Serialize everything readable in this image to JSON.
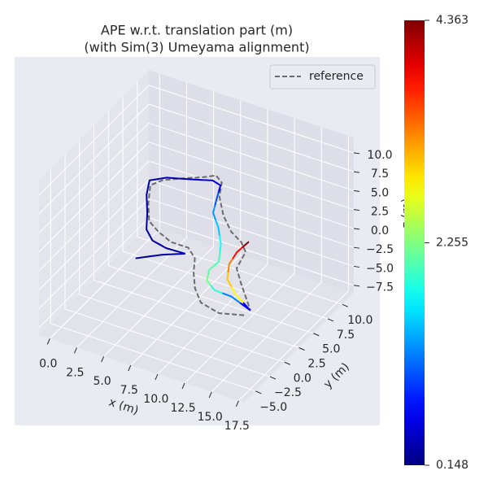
{
  "chart_data": {
    "type": "trajectory3d",
    "title": "APE w.r.t. translation part (m)",
    "subtitle": "(with Sim(3) Umeyama alignment)",
    "xlabel": "x (m)",
    "ylabel": "y (m)",
    "zlabel": "z (m)",
    "xlim": [
      -1,
      18
    ],
    "ylim": [
      -7,
      12
    ],
    "zlim": [
      -8.5,
      12
    ],
    "xticks": [
      {
        "value": 0,
        "label": "0.0"
      },
      2.5,
      {
        "value": 5,
        "label": "5.0"
      },
      7.5,
      {
        "value": 10,
        "label": "10.0"
      },
      12.5,
      {
        "value": 15,
        "label": "15.0"
      },
      17.5
    ],
    "yticks": [
      {
        "value": -5,
        "label": "−5.0"
      },
      {
        "value": -2.5,
        "label": "−2.5"
      },
      {
        "value": 0,
        "label": "0.0"
      },
      2.5,
      {
        "value": 5,
        "label": "5.0"
      },
      7.5,
      {
        "value": 10,
        "label": "10.0"
      }
    ],
    "zticks": [
      {
        "value": -7.5,
        "label": "−7.5"
      },
      {
        "value": -5,
        "label": "−5.0"
      },
      {
        "value": -2.5,
        "label": "−2.5"
      },
      {
        "value": 0,
        "label": "0.0"
      },
      2.5,
      {
        "value": 5,
        "label": "5.0"
      },
      7.5,
      {
        "value": 10,
        "label": "10.0"
      }
    ],
    "grid": true,
    "legend": "upper right",
    "series": [
      {
        "name": "reference",
        "color": "#6b6b6b",
        "style": "dashed",
        "x": [
          16.4,
          14.5,
          12.5,
          11.1,
          9.9,
          9.0,
          7.8,
          6.2,
          4.6,
          3.2,
          1.9,
          0.8,
          1.3,
          2.6,
          3.9,
          4.7,
          5.6,
          6.4,
          8.0,
          9.7,
          11.1,
          12.1,
          12.6,
          13.9,
          16.5
        ],
        "y": [
          -4.0,
          -4.8,
          -4.2,
          -2.6,
          -0.6,
          1.3,
          2.4,
          2.4,
          3.2,
          4.2,
          6.5,
          8.9,
          10.1,
          11.2,
          12.2,
          13.0,
          12.3,
          10.4,
          8.1,
          6.3,
          5.4,
          4.3,
          1.8,
          0.1,
          -3.1
        ],
        "z": [
          0,
          0,
          0,
          0,
          0,
          0,
          0,
          0,
          0,
          0,
          0,
          0,
          0,
          0,
          0,
          0,
          0,
          0,
          0,
          0,
          0,
          0,
          0,
          0,
          0
        ]
      },
      {
        "colormap": "jet",
        "x": [
          4.9,
          6.5,
          8.0,
          6.3,
          4.8,
          3.6,
          2.5,
          1.2,
          0.4,
          1.4,
          3.2,
          4.8,
          5.7,
          6.4,
          7.1,
          8.5,
          9.8,
          10.9,
          10.8,
          11.4,
          12.6,
          14.2,
          16.5,
          14.3,
          12.7,
          11.8,
          11.5,
          11.6
        ],
        "y": [
          -1.2,
          0.4,
          1.5,
          1.4,
          1.8,
          3.0,
          5.2,
          7.5,
          9.5,
          10.6,
          11.4,
          12.2,
          11.9,
          9.9,
          8.0,
          6.3,
          4.3,
          1.9,
          0.4,
          -1.1,
          -2.0,
          -2.1,
          -3.1,
          -1.6,
          0.0,
          2.0,
          3.9,
          5.7
        ],
        "z": [
          0,
          0,
          0,
          0,
          0,
          0,
          0,
          0,
          0,
          0,
          0,
          0,
          0,
          0,
          0,
          0,
          0,
          0,
          0,
          0,
          0,
          0,
          0,
          0,
          0,
          0,
          0,
          0
        ],
        "error": [
          0.3,
          0.3,
          0.4,
          0.3,
          0.3,
          0.3,
          0.3,
          0.3,
          0.3,
          0.4,
          0.4,
          0.5,
          0.5,
          1.0,
          1.3,
          1.5,
          1.8,
          2.0,
          2.1,
          2.2,
          1.9,
          1.2,
          0.6,
          2.8,
          3.0,
          3.3,
          3.8,
          4.3
        ]
      }
    ],
    "colorbar": {
      "lim": [
        0.148,
        4.363
      ],
      "ticks": [
        0.148,
        2.255,
        4.363
      ]
    }
  }
}
